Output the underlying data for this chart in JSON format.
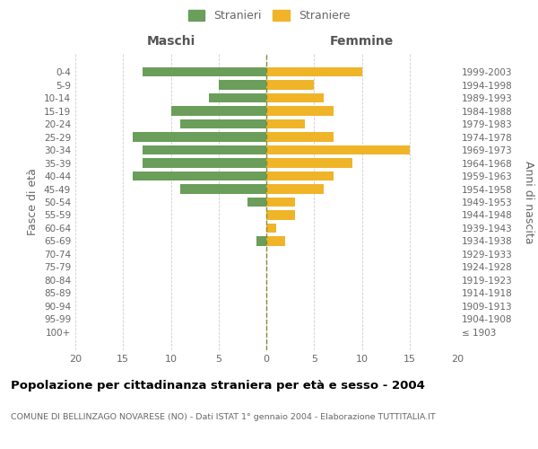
{
  "age_groups": [
    "100+",
    "95-99",
    "90-94",
    "85-89",
    "80-84",
    "75-79",
    "70-74",
    "65-69",
    "60-64",
    "55-59",
    "50-54",
    "45-49",
    "40-44",
    "35-39",
    "30-34",
    "25-29",
    "20-24",
    "15-19",
    "10-14",
    "5-9",
    "0-4"
  ],
  "birth_years": [
    "≤ 1903",
    "1904-1908",
    "1909-1913",
    "1914-1918",
    "1919-1923",
    "1924-1928",
    "1929-1933",
    "1934-1938",
    "1939-1943",
    "1944-1948",
    "1949-1953",
    "1954-1958",
    "1959-1963",
    "1964-1968",
    "1969-1973",
    "1974-1978",
    "1979-1983",
    "1984-1988",
    "1989-1993",
    "1994-1998",
    "1999-2003"
  ],
  "males": [
    0,
    0,
    0,
    0,
    0,
    0,
    0,
    1,
    0,
    0,
    2,
    9,
    14,
    13,
    13,
    14,
    9,
    10,
    6,
    5,
    13
  ],
  "females": [
    0,
    0,
    0,
    0,
    0,
    0,
    0,
    2,
    1,
    3,
    3,
    6,
    7,
    9,
    15,
    7,
    4,
    7,
    6,
    5,
    10
  ],
  "male_color": "#6a9e5a",
  "female_color": "#f0b429",
  "title": "Popolazione per cittadinanza straniera per età e sesso - 2004",
  "subtitle": "COMUNE DI BELLINZAGO NOVARESE (NO) - Dati ISTAT 1° gennaio 2004 - Elaborazione TUTTITALIA.IT",
  "ylabel_left": "Fasce di età",
  "ylabel_right": "Anni di nascita",
  "xlabel_left": "Maschi",
  "xlabel_right": "Femmine",
  "legend_males": "Stranieri",
  "legend_females": "Straniere",
  "xlim": 20,
  "background_color": "#ffffff",
  "grid_color": "#cccccc",
  "text_color": "#666666",
  "title_color": "#000000"
}
